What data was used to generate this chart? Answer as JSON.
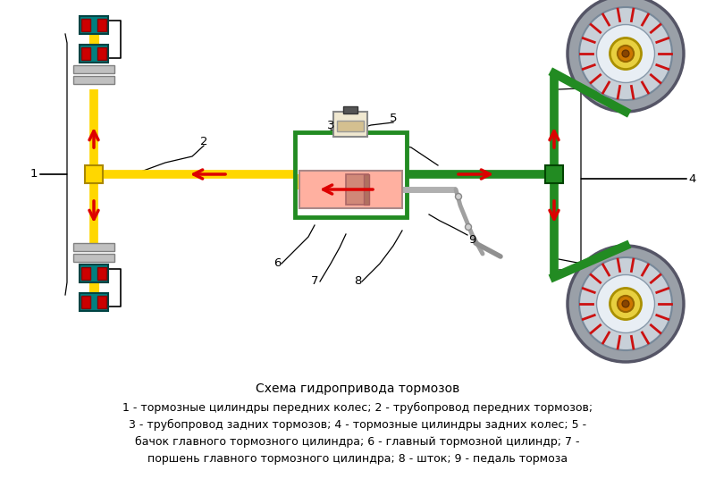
{
  "title": "Схема гидропривода тормозов",
  "caption_lines": [
    "1 - тормозные цилиндры передних колес; 2 - трубопровод передних тормозов;",
    "3 - трубопровод задних тормозов; 4 - тормозные цилиндры задних колес; 5 -",
    "бачок главного тормозного цилиндра; 6 - главный тормозной цилиндр; 7 -",
    "поршень главного тормозного цилиндра; 8 - шток; 9 - педаль тормоза"
  ],
  "bg_color": "#ffffff",
  "yellow": "#FFD700",
  "green": "#228B22",
  "red": "#DD0000",
  "teal": "#008080",
  "teal_dark": "#006666",
  "pink": "#FFB0A0",
  "pink_dark": "#E08070",
  "gray_disc": "#C8C8C8",
  "gray_dark": "#A0A0A0",
  "black": "#000000",
  "white": "#ffffff",
  "text_color": "#000000"
}
